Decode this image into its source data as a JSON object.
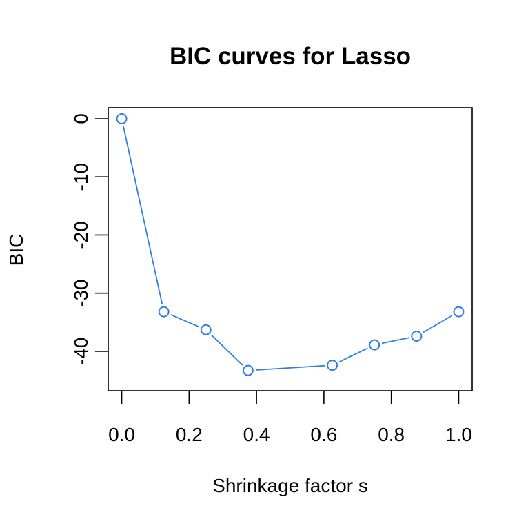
{
  "chart_data": {
    "type": "line",
    "title": "BIC curves for Lasso",
    "xlabel": "Shrinkage factor s",
    "ylabel": "BIC",
    "xlim": [
      0.0,
      1.0
    ],
    "ylim": [
      -45,
      0
    ],
    "x_ticks": [
      0.0,
      0.2,
      0.4,
      0.6,
      0.8,
      1.0
    ],
    "x_tick_labels": [
      "0.0",
      "0.2",
      "0.4",
      "0.6",
      "0.8",
      "1.0"
    ],
    "y_ticks": [
      0,
      -10,
      -20,
      -30,
      -40
    ],
    "y_tick_labels": [
      "0",
      "-10",
      "-20",
      "-30",
      "-40"
    ],
    "grid": false,
    "series": [
      {
        "name": "BIC",
        "color": "#2F7FE3",
        "x": [
          0.0,
          0.125,
          0.25,
          0.375,
          0.625,
          0.75,
          0.875,
          1.0
        ],
        "y": [
          0.0,
          -33.2,
          -36.3,
          -43.3,
          -42.4,
          -38.9,
          -37.4,
          -33.2
        ]
      }
    ]
  }
}
